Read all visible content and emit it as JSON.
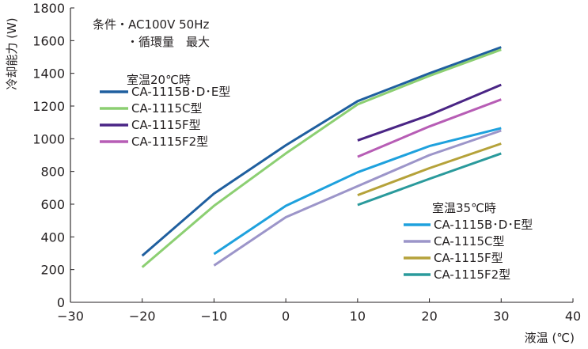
{
  "chart_data": {
    "type": "line",
    "ylabel": "冷却能力 (W)",
    "xlabel": "液温 (℃)",
    "xlim": [
      -30,
      40
    ],
    "ylim": [
      0,
      1800
    ],
    "x_ticks": [
      -30,
      -20,
      -10,
      0,
      10,
      20,
      30,
      40
    ],
    "y_ticks": [
      0,
      200,
      400,
      600,
      800,
      1000,
      1200,
      1400,
      1600,
      1800
    ],
    "x_tick_labels": [
      "−30",
      "−20",
      "−10",
      "0",
      "10",
      "20",
      "30",
      "40"
    ],
    "y_tick_labels": [
      "0",
      "200",
      "400",
      "600",
      "800",
      "1000",
      "1200",
      "1400",
      "1600",
      "1800"
    ],
    "grid": false,
    "notes": [
      "条件・AC100V 50Hz",
      "・循環量　最大"
    ],
    "groups": [
      {
        "title": "室温20℃時",
        "legend_placement": "upper-left",
        "series": [
          {
            "name": "CA-1115B･D･E型",
            "color": "#1f5f9f",
            "x": [
              -20,
              -10,
              0,
              10,
              20,
              30
            ],
            "y": [
              285,
              665,
              960,
              1230,
              1400,
              1560
            ]
          },
          {
            "name": "CA-1115C型",
            "color": "#8ccf72",
            "x": [
              -20,
              -10,
              0,
              10,
              20,
              30
            ],
            "y": [
              215,
              590,
              910,
              1210,
              1385,
              1545
            ]
          },
          {
            "name": "CA-1115F型",
            "color": "#4a2585",
            "x": [
              10,
              20,
              30
            ],
            "y": [
              990,
              1145,
              1330
            ]
          },
          {
            "name": "CA-1115F2型",
            "color": "#b75db5",
            "x": [
              10,
              20,
              30
            ],
            "y": [
              890,
              1075,
              1240
            ]
          }
        ]
      },
      {
        "title": "室温35℃時",
        "legend_placement": "lower-right",
        "series": [
          {
            "name": "CA-1115B･D･E型",
            "color": "#1ea1dd",
            "x": [
              -10,
              0,
              10,
              20,
              30
            ],
            "y": [
              295,
              590,
              795,
              955,
              1065
            ]
          },
          {
            "name": "CA-1115C型",
            "color": "#9c95c9",
            "x": [
              -10,
              0,
              10,
              20,
              30
            ],
            "y": [
              225,
              520,
              710,
              900,
              1050
            ]
          },
          {
            "name": "CA-1115F型",
            "color": "#b5a23a",
            "x": [
              10,
              20,
              30
            ],
            "y": [
              655,
              820,
              970
            ]
          },
          {
            "name": "CA-1115F2型",
            "color": "#2a9a9c",
            "x": [
              10,
              20,
              30
            ],
            "y": [
              595,
              755,
              910
            ]
          }
        ]
      }
    ]
  }
}
